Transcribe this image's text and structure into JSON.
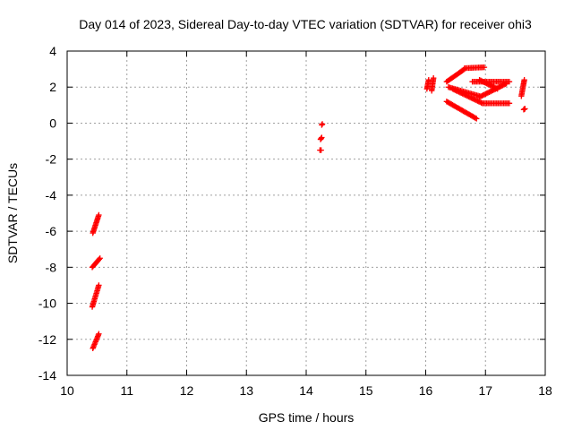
{
  "chart_data": {
    "type": "scatter",
    "title": "Day 014 of 2023, Sidereal Day-to-day VTEC variation (SDTVAR) for receiver ohi3",
    "xlabel": "GPS time / hours",
    "ylabel": "SDTVAR / TECUs",
    "xlim": [
      10,
      18
    ],
    "ylim": [
      -14,
      4
    ],
    "xticks": [
      "10",
      "11",
      "12",
      "13",
      "14",
      "15",
      "16",
      "17",
      "18"
    ],
    "yticks": [
      "-14",
      "-12",
      "-10",
      "-8",
      "-6",
      "-4",
      "-2",
      "0",
      "2",
      "4"
    ],
    "grid": true,
    "marker": "plus",
    "marker_color": "#ff0000",
    "series": [
      {
        "segments": [
          {
            "x0": 10.43,
            "y0": -12.5,
            "x1": 10.53,
            "y1": -11.7
          },
          {
            "x0": 10.42,
            "y0": -10.2,
            "x1": 10.53,
            "y1": -9.0
          },
          {
            "x0": 10.42,
            "y0": -8.0,
            "x1": 10.55,
            "y1": -7.5
          },
          {
            "x0": 10.43,
            "y0": -6.1,
            "x1": 10.53,
            "y1": -5.1
          },
          {
            "x0": 14.23,
            "y0": -1.5,
            "x1": 14.25,
            "y1": -1.5
          },
          {
            "x0": 14.24,
            "y0": -0.9,
            "x1": 14.26,
            "y1": -0.8
          },
          {
            "x0": 14.26,
            "y0": -0.1,
            "x1": 14.27,
            "y1": -0.05
          },
          {
            "x0": 16.02,
            "y0": 1.9,
            "x1": 16.05,
            "y1": 2.4
          },
          {
            "x0": 16.1,
            "y0": 1.8,
            "x1": 16.13,
            "y1": 2.5
          },
          {
            "x0": 16.35,
            "y0": 2.3,
            "x1": 16.65,
            "y1": 3.0
          },
          {
            "x0": 16.65,
            "y0": 3.05,
            "x1": 16.98,
            "y1": 3.1
          },
          {
            "x0": 16.38,
            "y0": 2.0,
            "x1": 16.9,
            "y1": 1.5
          },
          {
            "x0": 16.9,
            "y0": 1.45,
            "x1": 17.35,
            "y1": 2.2
          },
          {
            "x0": 16.45,
            "y0": 1.9,
            "x1": 16.95,
            "y1": 1.1
          },
          {
            "x0": 16.95,
            "y0": 1.1,
            "x1": 17.4,
            "y1": 1.1
          },
          {
            "x0": 16.35,
            "y0": 1.2,
            "x1": 16.85,
            "y1": 0.25
          },
          {
            "x0": 16.78,
            "y0": 2.3,
            "x1": 17.4,
            "y1": 2.3
          },
          {
            "x0": 16.9,
            "y0": 2.4,
            "x1": 17.2,
            "y1": 1.9
          },
          {
            "x0": 17.6,
            "y0": 1.5,
            "x1": 17.65,
            "y1": 2.4
          },
          {
            "x0": 17.64,
            "y0": 0.75,
            "x1": 17.66,
            "y1": 0.8
          }
        ]
      }
    ]
  }
}
